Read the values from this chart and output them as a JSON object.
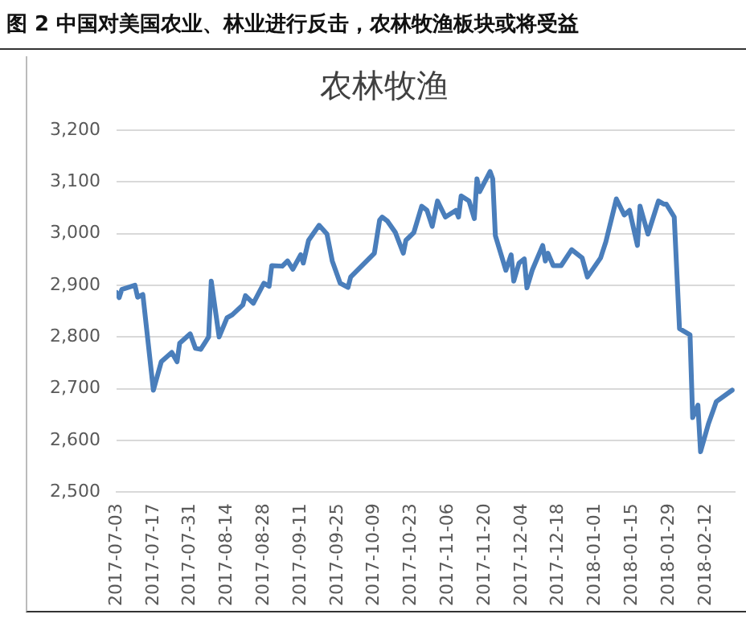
{
  "chart_data": {
    "type": "line",
    "title": "图 2  中国对美国农业、林业进行反击，农林牧渔板块或将受益",
    "subtitle": "农林牧渔",
    "x": [
      "2017-07-03",
      "2017-07-04",
      "2017-07-05",
      "2017-07-10",
      "2017-07-11",
      "2017-07-13",
      "2017-07-17",
      "2017-07-20",
      "2017-07-24",
      "2017-07-26",
      "2017-07-27",
      "2017-07-31",
      "2017-08-02",
      "2017-08-04",
      "2017-08-07",
      "2017-08-08",
      "2017-08-11",
      "2017-08-14",
      "2017-08-16",
      "2017-08-20",
      "2017-08-21",
      "2017-08-24",
      "2017-08-28",
      "2017-08-30",
      "2017-08-31",
      "2017-09-04",
      "2017-09-06",
      "2017-09-08",
      "2017-09-11",
      "2017-09-12",
      "2017-09-14",
      "2017-09-18",
      "2017-09-21",
      "2017-09-23",
      "2017-09-26",
      "2017-09-29",
      "2017-09-30",
      "2017-10-09",
      "2017-10-11",
      "2017-10-12",
      "2017-10-14",
      "2017-10-17",
      "2017-10-20",
      "2017-10-21",
      "2017-10-24",
      "2017-10-27",
      "2017-10-29",
      "2017-10-31",
      "2017-11-02",
      "2017-11-05",
      "2017-11-09",
      "2017-11-10",
      "2017-11-11",
      "2017-11-14",
      "2017-11-16",
      "2017-11-17",
      "2017-11-18",
      "2017-11-22",
      "2017-11-23",
      "2017-11-24",
      "2017-11-28",
      "2017-11-30",
      "2017-12-01",
      "2017-12-03",
      "2017-12-05",
      "2017-12-06",
      "2017-12-08",
      "2017-12-12",
      "2017-12-13",
      "2017-12-14",
      "2017-12-16",
      "2017-12-19",
      "2017-12-23",
      "2017-12-27",
      "2017-12-29",
      "2018-01-03",
      "2018-01-05",
      "2018-01-09",
      "2018-01-12",
      "2018-01-14",
      "2018-01-17",
      "2018-01-18",
      "2018-01-21",
      "2018-01-25",
      "2018-01-27",
      "2018-01-28",
      "2018-01-31",
      "2018-02-02",
      "2018-02-06",
      "2018-02-07",
      "2018-02-09",
      "2018-02-10",
      "2018-02-13",
      "2018-02-16",
      "2018-02-22"
    ],
    "series": [
      {
        "color": "#4a7ebb",
        "values": [
          2886,
          2876,
          2892,
          2900,
          2877,
          2882,
          2697,
          2752,
          2770,
          2752,
          2788,
          2806,
          2778,
          2776,
          2800,
          2908,
          2800,
          2837,
          2843,
          2862,
          2880,
          2865,
          2904,
          2898,
          2938,
          2937,
          2947,
          2931,
          2959,
          2943,
          2987,
          3016,
          2999,
          2947,
          2904,
          2896,
          2916,
          2962,
          3026,
          3032,
          3024,
          3002,
          2962,
          2987,
          3002,
          3053,
          3045,
          3014,
          3063,
          3032,
          3045,
          3032,
          3073,
          3063,
          3029,
          3106,
          3081,
          3120,
          3106,
          2996,
          2929,
          2959,
          2908,
          2943,
          2951,
          2895,
          2929,
          2977,
          2947,
          2962,
          2938,
          2938,
          2969,
          2953,
          2916,
          2953,
          2984,
          3067,
          3036,
          3045,
          2977,
          3053,
          2999,
          3063,
          3057,
          3057,
          3032,
          2816,
          2804,
          2644,
          2668,
          2578,
          2632,
          2675,
          2697
        ]
      }
    ],
    "xlim": [
      "2017-07-03",
      "2018-02-23"
    ],
    "xticks": [
      "2017-07-03",
      "2017-07-17",
      "2017-07-31",
      "2017-08-14",
      "2017-08-28",
      "2017-09-11",
      "2017-09-25",
      "2017-10-09",
      "2017-10-23",
      "2017-11-06",
      "2017-11-20",
      "2017-12-04",
      "2017-12-18",
      "2018-01-01",
      "2018-01-15",
      "2018-01-29",
      "2018-02-12"
    ],
    "ylim": [
      2500,
      3200
    ],
    "yticks": [
      {
        "value": 2500,
        "label": "2,500"
      },
      {
        "value": 2600,
        "label": "2,600"
      },
      {
        "value": 2700,
        "label": "2,700"
      },
      {
        "value": 2800,
        "label": "2,800"
      },
      {
        "value": 2900,
        "label": "2,900"
      },
      {
        "value": 3000,
        "label": "3,000"
      },
      {
        "value": 3100,
        "label": "3,100"
      },
      {
        "value": 3200,
        "label": "3,200"
      }
    ],
    "grid": "y",
    "legend": false,
    "marker": "none",
    "line_style": "solid"
  }
}
